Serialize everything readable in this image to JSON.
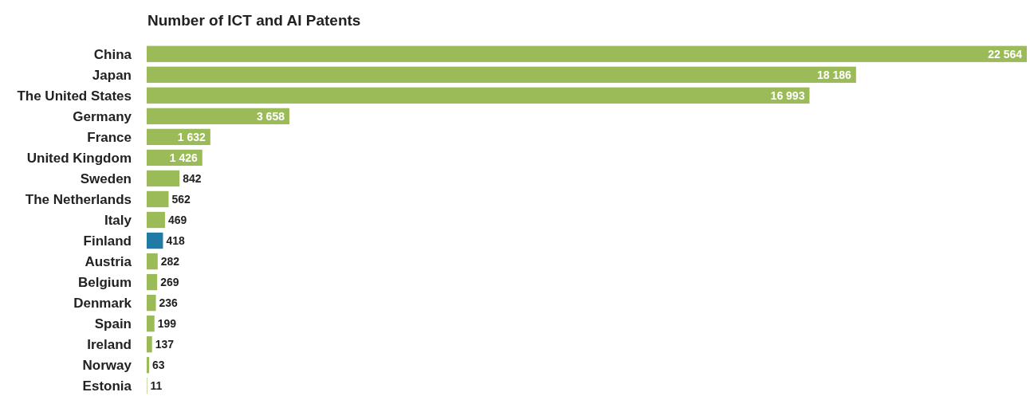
{
  "chart_data": {
    "type": "bar",
    "orientation": "horizontal",
    "title": "Number of ICT and AI Patents",
    "categories": [
      "China",
      "Japan",
      "The United States",
      "Germany",
      "France",
      "United Kingdom",
      "Sweden",
      "The Netherlands",
      "Italy",
      "Finland",
      "Austria",
      "Belgium",
      "Denmark",
      "Spain",
      "Ireland",
      "Norway",
      "Estonia"
    ],
    "values": [
      22564,
      18186,
      16993,
      3658,
      1632,
      1426,
      842,
      562,
      469,
      418,
      282,
      269,
      236,
      199,
      137,
      63,
      11
    ],
    "value_labels": [
      "22 564",
      "18 186",
      "16 993",
      "3 658",
      "1 632",
      "1 426",
      "842",
      "562",
      "469",
      "418",
      "282",
      "269",
      "236",
      "199",
      "137",
      "63",
      "11"
    ],
    "colors": [
      "#9bbb59",
      "#9bbb59",
      "#9bbb59",
      "#9bbb59",
      "#9bbb59",
      "#9bbb59",
      "#9bbb59",
      "#9bbb59",
      "#9bbb59",
      "#1f7ba5",
      "#9bbb59",
      "#9bbb59",
      "#9bbb59",
      "#9bbb59",
      "#9bbb59",
      "#9bbb59",
      "#9bbb59"
    ]
  }
}
